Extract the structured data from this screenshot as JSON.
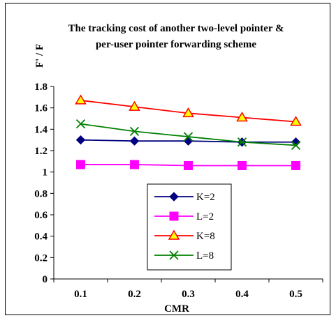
{
  "chart_data": {
    "type": "line",
    "title": "The tracking cost of another two-level pointer & per-user pointer forwarding scheme",
    "title_lines": [
      "The tracking cost of another two-level pointer &",
      "per-user pointer forwarding scheme"
    ],
    "xlabel": "CMR",
    "ylabel": "F' / F",
    "categories": [
      "0.1",
      "0.2",
      "0.3",
      "0.4",
      "0.5"
    ],
    "ylim": [
      0,
      1.8
    ],
    "yticks": [
      "0",
      "0.2",
      "0.4",
      "0.6",
      "0.8",
      "1",
      "1.2",
      "1.4",
      "1.6",
      "1.8"
    ],
    "grid": false,
    "legend_position": "lower-center",
    "series": [
      {
        "name": "K=2",
        "values": [
          1.3,
          1.29,
          1.29,
          1.28,
          1.28
        ],
        "color": "#000080",
        "marker": "diamond"
      },
      {
        "name": "L=2",
        "values": [
          1.07,
          1.07,
          1.06,
          1.06,
          1.06
        ],
        "color": "#FF00FF",
        "marker": "square"
      },
      {
        "name": "K=8",
        "values": [
          1.67,
          1.61,
          1.55,
          1.51,
          1.47
        ],
        "color": "#FF0000",
        "marker": "triangle",
        "marker_fill": "#FFFF00"
      },
      {
        "name": "L=8",
        "values": [
          1.45,
          1.38,
          1.33,
          1.28,
          1.25
        ],
        "color": "#008000",
        "marker": "x"
      }
    ]
  }
}
